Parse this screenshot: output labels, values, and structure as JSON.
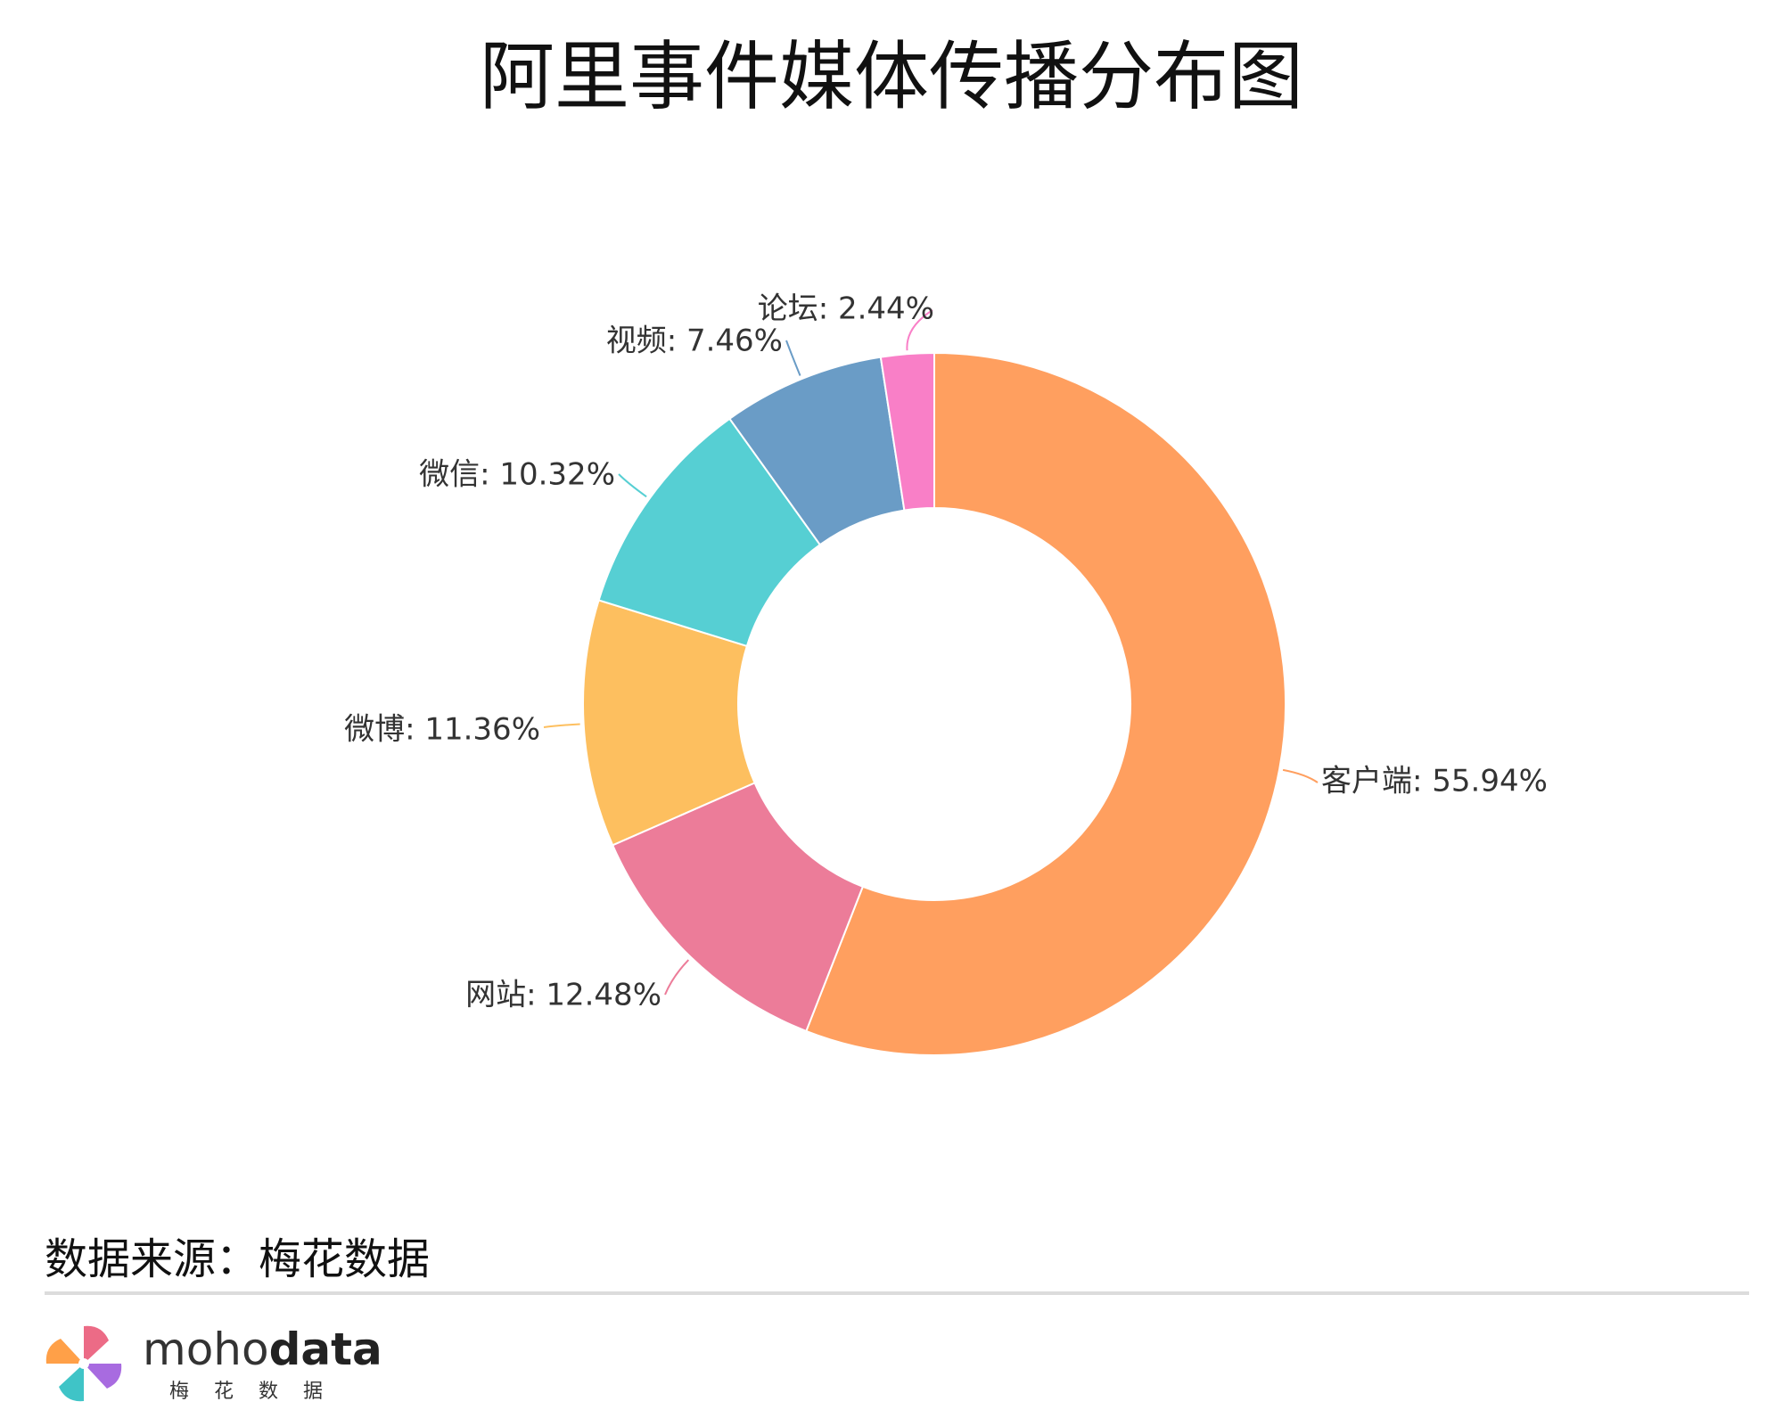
{
  "chart_data": {
    "type": "pie",
    "variant": "donut",
    "title": "阿里事件媒体传播分布图",
    "slices": [
      {
        "label": "客户端",
        "value": 55.94,
        "display": "客户端: 55.94%",
        "color": "#FF9F5F"
      },
      {
        "label": "网站",
        "value": 12.48,
        "display": "网站: 12.48%",
        "color": "#EC7C99"
      },
      {
        "label": "微博",
        "value": 11.36,
        "display": "微博: 11.36%",
        "color": "#FDBF5F"
      },
      {
        "label": "微信",
        "value": 10.32,
        "display": "微信: 10.32%",
        "color": "#56CFD3"
      },
      {
        "label": "视频",
        "value": 7.46,
        "display": "视频: 7.46%",
        "color": "#6A9CC6"
      },
      {
        "label": "论坛",
        "value": 2.44,
        "display": "论坛: 2.44%",
        "color": "#F97FC7"
      }
    ],
    "start": "12 o'clock",
    "direction": "clockwise",
    "label_text_color": "#333333"
  },
  "footer": {
    "source": "数据来源：梅花数据"
  },
  "logo": {
    "word_light": "moho",
    "word_bold": "data",
    "subtitle": "梅花数据"
  }
}
